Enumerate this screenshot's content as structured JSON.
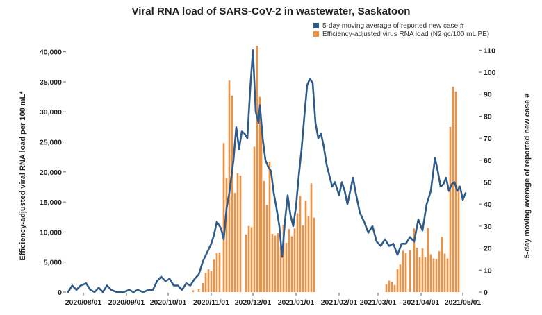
{
  "chart_data": {
    "type": "bar+line",
    "title": "Viral RNA load of SARS-CoV-2 in wastewater, Saskatoon",
    "ylabel_left": "Efficiency-adjusted viral RNA load per 100 mL*",
    "ylabel_right": "5-day moving average of reported new case #",
    "ylim_left": [
      0,
      41000
    ],
    "ylim_right": [
      0,
      112
    ],
    "xlim": [
      "2020-07-20",
      "2021-05-12"
    ],
    "left_ticks": [
      0,
      5000,
      10000,
      15000,
      20000,
      25000,
      30000,
      35000,
      40000
    ],
    "left_tick_labels": [
      "0",
      "5,000",
      "10,000",
      "15,000",
      "20,000",
      "25,000",
      "30,000",
      "35,000",
      "40,000"
    ],
    "right_ticks": [
      0,
      10,
      20,
      30,
      40,
      50,
      60,
      70,
      80,
      90,
      100,
      110
    ],
    "right_tick_labels": [
      "0",
      "10",
      "20",
      "30",
      "40",
      "50",
      "60",
      "70",
      "80",
      "90",
      "100",
      "110"
    ],
    "x_ticks": [
      "2020-08-01",
      "2020-09-01",
      "2020-10-01",
      "2020-11-01",
      "2020-12-01",
      "2021-01-01",
      "2021-02-01",
      "2021-03-01",
      "2021-04-01",
      "2021-05-01"
    ],
    "x_tick_labels": [
      "2020/08/01",
      "2020/09/01",
      "2020/10/01",
      "2020/11/01",
      "2020/12/01",
      "2021/01/01",
      "2021/02/01",
      "2021/03/01",
      "2021/04/01",
      "2021/05/01"
    ],
    "legend": [
      {
        "name": "5-day moving average of reported new case #",
        "color": "#2f5b8a"
      },
      {
        "name": "Efficiency-adjusted virus RNA load (N2 gc/100 mL PE)",
        "color": "#f28e3c"
      }
    ],
    "legend_placement": "top-right",
    "grid": false,
    "series": [
      {
        "name": "Efficiency-adjusted virus RNA load (N2 gc/100 mL PE)",
        "type": "bar",
        "axis": "left",
        "color": "#f28e3c",
        "points": [
          [
            "2020-10-19",
            300
          ],
          [
            "2020-10-23",
            500
          ],
          [
            "2020-10-26",
            1500
          ],
          [
            "2020-10-28",
            3200
          ],
          [
            "2020-10-30",
            3800
          ],
          [
            "2020-11-01",
            3500
          ],
          [
            "2020-11-03",
            5400
          ],
          [
            "2020-11-05",
            6500
          ],
          [
            "2020-11-07",
            6600
          ],
          [
            "2020-11-10",
            24800
          ],
          [
            "2020-11-12",
            19000
          ],
          [
            "2020-11-14",
            35200
          ],
          [
            "2020-11-16",
            32700
          ],
          [
            "2020-11-18",
            16500
          ],
          [
            "2020-11-20",
            19800
          ],
          [
            "2020-11-22",
            19400
          ],
          [
            "2020-11-26",
            9600
          ],
          [
            "2020-11-28",
            11000
          ],
          [
            "2020-11-30",
            10800
          ],
          [
            "2020-12-02",
            24200
          ],
          [
            "2020-12-04",
            41000
          ],
          [
            "2020-12-06",
            32500
          ],
          [
            "2020-12-07",
            26800
          ],
          [
            "2020-12-09",
            18500
          ],
          [
            "2020-12-11",
            14500
          ],
          [
            "2020-12-13",
            21700
          ],
          [
            "2020-12-15",
            9700
          ],
          [
            "2020-12-17",
            9400
          ],
          [
            "2020-12-19",
            9800
          ],
          [
            "2020-12-21",
            7600
          ],
          [
            "2020-12-23",
            11200
          ],
          [
            "2020-12-25",
            8200
          ],
          [
            "2020-12-27",
            10500
          ],
          [
            "2020-12-29",
            9300
          ],
          [
            "2020-12-31",
            10600
          ],
          [
            "2021-01-02",
            13100
          ],
          [
            "2021-01-04",
            16000
          ],
          [
            "2021-01-06",
            11100
          ],
          [
            "2021-01-08",
            15200
          ],
          [
            "2021-01-10",
            12600
          ],
          [
            "2021-01-12",
            18100
          ],
          [
            "2021-01-14",
            12400
          ],
          [
            "2021-03-07",
            1300
          ],
          [
            "2021-03-09",
            1900
          ],
          [
            "2021-03-11",
            1700
          ],
          [
            "2021-03-13",
            1200
          ],
          [
            "2021-03-15",
            3800
          ],
          [
            "2021-03-17",
            4600
          ],
          [
            "2021-03-19",
            6900
          ],
          [
            "2021-03-21",
            6500
          ],
          [
            "2021-03-24",
            7000
          ],
          [
            "2021-03-27",
            10600
          ],
          [
            "2021-03-29",
            7400
          ],
          [
            "2021-03-31",
            5800
          ],
          [
            "2021-04-02",
            7300
          ],
          [
            "2021-04-04",
            5800
          ],
          [
            "2021-04-06",
            10700
          ],
          [
            "2021-04-08",
            6300
          ],
          [
            "2021-04-10",
            5600
          ],
          [
            "2021-04-12",
            5500
          ],
          [
            "2021-04-14",
            6800
          ],
          [
            "2021-04-16",
            9200
          ],
          [
            "2021-04-18",
            6400
          ],
          [
            "2021-04-20",
            5600
          ],
          [
            "2021-04-22",
            27500
          ],
          [
            "2021-04-24",
            34200
          ],
          [
            "2021-04-26",
            33400
          ],
          [
            "2021-04-28",
            17700
          ]
        ]
      },
      {
        "name": "5-day moving average of reported new case #",
        "type": "line",
        "axis": "right",
        "color": "#2f5b8a",
        "points": [
          [
            "2020-07-21",
            0
          ],
          [
            "2020-07-24",
            3
          ],
          [
            "2020-07-27",
            1
          ],
          [
            "2020-07-30",
            3
          ],
          [
            "2020-08-03",
            4
          ],
          [
            "2020-08-06",
            1
          ],
          [
            "2020-08-09",
            0
          ],
          [
            "2020-08-12",
            2
          ],
          [
            "2020-08-15",
            0
          ],
          [
            "2020-08-18",
            3
          ],
          [
            "2020-08-21",
            1
          ],
          [
            "2020-08-25",
            0
          ],
          [
            "2020-08-30",
            0
          ],
          [
            "2020-09-03",
            1
          ],
          [
            "2020-09-06",
            0
          ],
          [
            "2020-09-09",
            1
          ],
          [
            "2020-09-13",
            0
          ],
          [
            "2020-09-17",
            1
          ],
          [
            "2020-09-20",
            1
          ],
          [
            "2020-09-23",
            5
          ],
          [
            "2020-09-26",
            7
          ],
          [
            "2020-09-29",
            5
          ],
          [
            "2020-10-02",
            6
          ],
          [
            "2020-10-05",
            3
          ],
          [
            "2020-10-08",
            3
          ],
          [
            "2020-10-11",
            1
          ],
          [
            "2020-10-14",
            4
          ],
          [
            "2020-10-17",
            3
          ],
          [
            "2020-10-20",
            6
          ],
          [
            "2020-10-23",
            8
          ],
          [
            "2020-10-26",
            14
          ],
          [
            "2020-10-29",
            18
          ],
          [
            "2020-11-01",
            22
          ],
          [
            "2020-11-03",
            26
          ],
          [
            "2020-11-05",
            32
          ],
          [
            "2020-11-08",
            29
          ],
          [
            "2020-11-10",
            24
          ],
          [
            "2020-11-12",
            38
          ],
          [
            "2020-11-14",
            45
          ],
          [
            "2020-11-17",
            60
          ],
          [
            "2020-11-19",
            75
          ],
          [
            "2020-11-21",
            65
          ],
          [
            "2020-11-23",
            73
          ],
          [
            "2020-11-25",
            72
          ],
          [
            "2020-11-27",
            70
          ],
          [
            "2020-11-29",
            92
          ],
          [
            "2020-12-01",
            110
          ],
          [
            "2020-12-03",
            82
          ],
          [
            "2020-12-05",
            77
          ],
          [
            "2020-12-06",
            85
          ],
          [
            "2020-12-08",
            70
          ],
          [
            "2020-12-10",
            60
          ],
          [
            "2020-12-12",
            57
          ],
          [
            "2020-12-14",
            55
          ],
          [
            "2020-12-16",
            45
          ],
          [
            "2020-12-18",
            38
          ],
          [
            "2020-12-20",
            30
          ],
          [
            "2020-12-22",
            16
          ],
          [
            "2020-12-24",
            32
          ],
          [
            "2020-12-26",
            44
          ],
          [
            "2020-12-28",
            35
          ],
          [
            "2020-12-30",
            30
          ],
          [
            "2021-01-01",
            39
          ],
          [
            "2021-01-03",
            53
          ],
          [
            "2021-01-05",
            65
          ],
          [
            "2021-01-07",
            80
          ],
          [
            "2021-01-09",
            94
          ],
          [
            "2021-01-11",
            97
          ],
          [
            "2021-01-13",
            95
          ],
          [
            "2021-01-15",
            77
          ],
          [
            "2021-01-17",
            70
          ],
          [
            "2021-01-19",
            72
          ],
          [
            "2021-01-21",
            66
          ],
          [
            "2021-01-23",
            58
          ],
          [
            "2021-01-25",
            53
          ],
          [
            "2021-01-27",
            48
          ],
          [
            "2021-01-29",
            50
          ],
          [
            "2021-02-01",
            44
          ],
          [
            "2021-02-03",
            50
          ],
          [
            "2021-02-05",
            46
          ],
          [
            "2021-02-07",
            40
          ],
          [
            "2021-02-09",
            46
          ],
          [
            "2021-02-11",
            52
          ],
          [
            "2021-02-13",
            45
          ],
          [
            "2021-02-16",
            36
          ],
          [
            "2021-02-19",
            32
          ],
          [
            "2021-02-22",
            27
          ],
          [
            "2021-02-25",
            30
          ],
          [
            "2021-02-28",
            23
          ],
          [
            "2021-03-03",
            21
          ],
          [
            "2021-03-06",
            24
          ],
          [
            "2021-03-09",
            21
          ],
          [
            "2021-03-12",
            22
          ],
          [
            "2021-03-15",
            17
          ],
          [
            "2021-03-18",
            22
          ],
          [
            "2021-03-21",
            22
          ],
          [
            "2021-03-24",
            25
          ],
          [
            "2021-03-27",
            23
          ],
          [
            "2021-03-30",
            33
          ],
          [
            "2021-04-02",
            28
          ],
          [
            "2021-04-05",
            40
          ],
          [
            "2021-04-08",
            46
          ],
          [
            "2021-04-11",
            61
          ],
          [
            "2021-04-13",
            55
          ],
          [
            "2021-04-15",
            48
          ],
          [
            "2021-04-17",
            49
          ],
          [
            "2021-04-19",
            52
          ],
          [
            "2021-04-21",
            46
          ],
          [
            "2021-04-23",
            49
          ],
          [
            "2021-04-25",
            50
          ],
          [
            "2021-04-27",
            46
          ],
          [
            "2021-04-29",
            48
          ],
          [
            "2021-05-01",
            42
          ],
          [
            "2021-05-03",
            45
          ]
        ]
      }
    ]
  }
}
